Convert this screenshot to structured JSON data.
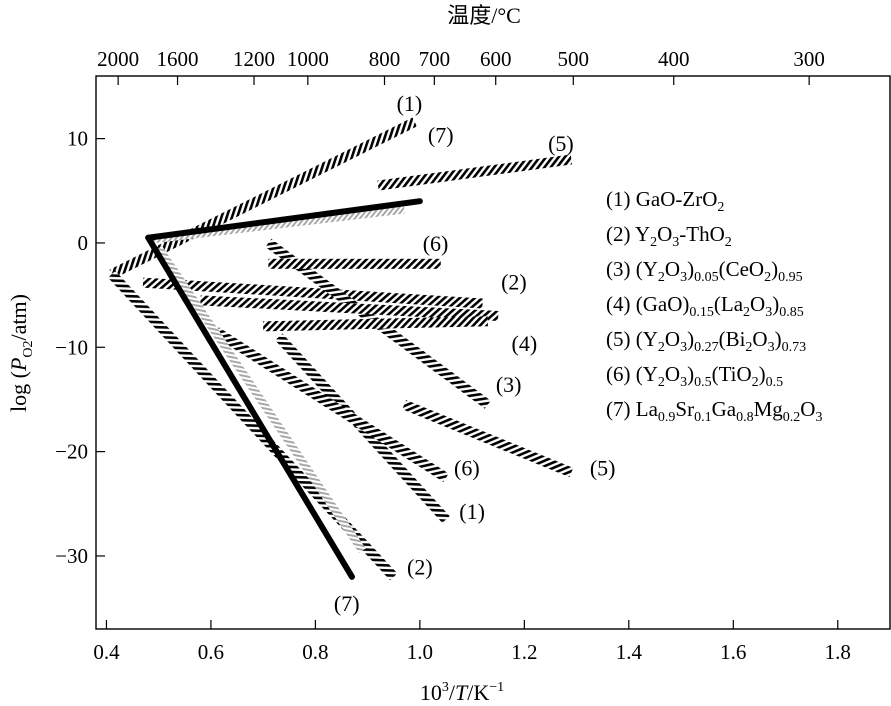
{
  "chart_data": {
    "type": "line",
    "title": "",
    "top_axis": {
      "label": "温度/°C",
      "ticks": [
        {
          "label": "2000",
          "x": 0.4224
        },
        {
          "label": "1600",
          "x": 0.5361
        },
        {
          "label": "1200",
          "x": 0.6825
        },
        {
          "label": "1000",
          "x": 0.7855
        },
        {
          "label": "800",
          "x": 0.9323
        },
        {
          "label": "700",
          "x": 1.0277
        },
        {
          "label": "600",
          "x": 1.1452
        },
        {
          "label": "500",
          "x": 1.2937
        },
        {
          "label": "400",
          "x": 1.486
        },
        {
          "label": "300",
          "x": 1.7452
        }
      ]
    },
    "xlabel": {
      "base": "10",
      "sup1": "3",
      "slash1": "/",
      "var": "T",
      "slash2": "/K",
      "sup2": "−1"
    },
    "ylabel": {
      "pre": "log (",
      "var": "P",
      "sub": "O2",
      "post": "/atm)"
    },
    "xlim": [
      0.38,
      1.9
    ],
    "ylim": [
      -37,
      16
    ],
    "xticks": [
      "0.4",
      "0.6",
      "0.8",
      "1.0",
      "1.2",
      "1.4",
      "1.6",
      "1.8"
    ],
    "xtick_values": [
      0.4,
      0.6,
      0.8,
      1.0,
      1.2,
      1.4,
      1.6,
      1.8
    ],
    "yticks": [
      "10",
      "0",
      "−10",
      "−20",
      "−30"
    ],
    "ytick_values": [
      10,
      0,
      -10,
      -20,
      -30
    ],
    "series": [
      {
        "name": "(1) GaO-ZrO2",
        "style": "hatch",
        "segments": [
          [
            [
              0.41,
              -3.0
            ],
            [
              0.99,
              11.6
            ]
          ],
          [
            [
              0.73,
              -9.0
            ],
            [
              1.05,
              -26.5
            ]
          ]
        ]
      },
      {
        "name": "(2) Y2O3-ThO2",
        "style": "hatch",
        "segments": [
          [
            [
              0.47,
              -3.8
            ],
            [
              1.12,
              -5.8
            ]
          ],
          [
            [
              0.41,
              -3.0
            ],
            [
              0.95,
              -32.0
            ]
          ]
        ]
      },
      {
        "name": "(3) (Y2O3)0.05(CeO2)0.95",
        "style": "hatch",
        "segments": [
          [
            [
              0.71,
              0.0
            ],
            [
              1.13,
              -15.5
            ]
          ]
        ]
      },
      {
        "name": "(4) (GaO)0.15(La2O3)0.85",
        "style": "hatch",
        "segments": [
          [
            [
              0.58,
              -5.5
            ],
            [
              1.15,
              -7.0
            ]
          ],
          [
            [
              0.7,
              -8.0
            ],
            [
              1.13,
              -7.5
            ]
          ]
        ]
      },
      {
        "name": "(5) (Y2O3)0.27(Bi2O3)0.73",
        "style": "hatch",
        "segments": [
          [
            [
              0.92,
              5.5
            ],
            [
              1.29,
              8.0
            ]
          ],
          [
            [
              0.97,
              -15.5
            ],
            [
              1.29,
              -22.0
            ]
          ]
        ]
      },
      {
        "name": "(6) (Y2O3)0.5(TiO2)0.5",
        "style": "hatch",
        "segments": [
          [
            [
              0.71,
              -2.0
            ],
            [
              1.04,
              -2.0
            ]
          ],
          [
            [
              0.61,
              -8.5
            ],
            [
              1.05,
              -22.5
            ]
          ]
        ]
      },
      {
        "name": "(7) La0.9Sr0.1Ga0.8Mg0.2O3",
        "style": "solid",
        "segments": [
          [
            [
              0.48,
              0.5
            ],
            [
              1.0,
              4.0
            ]
          ],
          [
            [
              0.48,
              0.5
            ],
            [
              0.87,
              -32.0
            ]
          ]
        ]
      },
      {
        "name": "",
        "style": "gray",
        "segments": [
          [
            [
              0.48,
              0.3
            ],
            [
              0.97,
              3.2
            ]
          ],
          [
            [
              0.5,
              -0.5
            ],
            [
              0.89,
              -29.5
            ]
          ]
        ]
      }
    ],
    "markers": [
      {
        "text": "(1)",
        "x": 0.98,
        "y": 13.4
      },
      {
        "text": "(7)",
        "x": 1.04,
        "y": 10.4
      },
      {
        "text": "(5)",
        "x": 1.27,
        "y": 9.6
      },
      {
        "text": "(6)",
        "x": 1.03,
        "y": 0.0
      },
      {
        "text": "(2)",
        "x": 1.18,
        "y": -3.7
      },
      {
        "text": "(4)",
        "x": 1.2,
        "y": -9.6
      },
      {
        "text": "(3)",
        "x": 1.17,
        "y": -13.5
      },
      {
        "text": "(6)",
        "x": 1.09,
        "y": -21.5
      },
      {
        "text": "(5)",
        "x": 1.35,
        "y": -21.5
      },
      {
        "text": "(1)",
        "x": 1.1,
        "y": -25.7
      },
      {
        "text": "(2)",
        "x": 1.0,
        "y": -31.0
      },
      {
        "text": "(7)",
        "x": 0.86,
        "y": -34.5
      }
    ],
    "legend": {
      "position": "right",
      "entries": [
        {
          "parts": [
            [
              "(1) GaO-ZrO",
              "n"
            ],
            [
              "2",
              "sub"
            ]
          ]
        },
        {
          "parts": [
            [
              "(2) Y",
              "n"
            ],
            [
              "2",
              "sub"
            ],
            [
              "O",
              "n"
            ],
            [
              "3",
              "sub"
            ],
            [
              "-ThO",
              "n"
            ],
            [
              "2",
              "sub"
            ]
          ]
        },
        {
          "parts": [
            [
              "(3) (Y",
              "n"
            ],
            [
              "2",
              "sub"
            ],
            [
              "O",
              "n"
            ],
            [
              "3",
              "sub"
            ],
            [
              ")",
              "n"
            ],
            [
              "0.05",
              "sub"
            ],
            [
              "(CeO",
              "n"
            ],
            [
              "2",
              "sub"
            ],
            [
              ")",
              "n"
            ],
            [
              "0.95",
              "sub"
            ]
          ]
        },
        {
          "parts": [
            [
              "(4) (GaO)",
              "n"
            ],
            [
              "0.15",
              "sub"
            ],
            [
              "(La",
              "n"
            ],
            [
              "2",
              "sub"
            ],
            [
              "O",
              "n"
            ],
            [
              "3",
              "sub"
            ],
            [
              ")",
              "n"
            ],
            [
              "0.85",
              "sub"
            ]
          ]
        },
        {
          "parts": [
            [
              "(5) (Y",
              "n"
            ],
            [
              "2",
              "sub"
            ],
            [
              "O",
              "n"
            ],
            [
              "3",
              "sub"
            ],
            [
              ")",
              "n"
            ],
            [
              "0.27",
              "sub"
            ],
            [
              "(Bi",
              "n"
            ],
            [
              "2",
              "sub"
            ],
            [
              "O",
              "n"
            ],
            [
              "3",
              "sub"
            ],
            [
              ")",
              "n"
            ],
            [
              "0.73",
              "sub"
            ]
          ]
        },
        {
          "parts": [
            [
              "(6) (Y",
              "n"
            ],
            [
              "2",
              "sub"
            ],
            [
              "O",
              "n"
            ],
            [
              "3",
              "sub"
            ],
            [
              ")",
              "n"
            ],
            [
              "0.5",
              "sub"
            ],
            [
              "(TiO",
              "n"
            ],
            [
              "2",
              "sub"
            ],
            [
              ")",
              "n"
            ],
            [
              "0.5",
              "sub"
            ]
          ]
        },
        {
          "parts": [
            [
              "(7) La",
              "n"
            ],
            [
              "0.9",
              "sub"
            ],
            [
              "Sr",
              "n"
            ],
            [
              "0.1",
              "sub"
            ],
            [
              "Ga",
              "n"
            ],
            [
              "0.8",
              "sub"
            ],
            [
              "Mg",
              "n"
            ],
            [
              "0.2",
              "sub"
            ],
            [
              "O",
              "n"
            ],
            [
              "3",
              "sub"
            ]
          ]
        }
      ]
    },
    "colors": {
      "ink": "#000000",
      "gray_band": "#b0b0b0",
      "background": "#ffffff"
    },
    "grid": false
  }
}
